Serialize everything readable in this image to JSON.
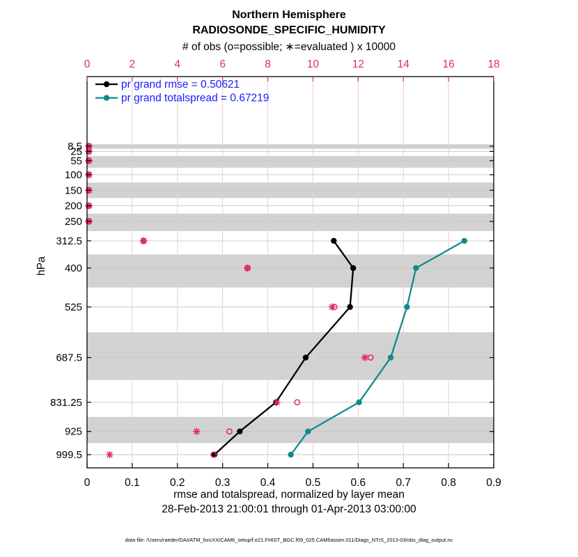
{
  "header": {
    "title": "Northern Hemisphere",
    "subtitle": "RADIOSONDE_SPECIFIC_HUMIDITY",
    "obs_axis_label": "# of obs (o=possible; ∗=evaluated ) x 10000"
  },
  "axes": {
    "ylabel": "hPa",
    "xlabel": "rmse and totalspread, normalized by layer mean",
    "xlabel_dates": "28-Feb-2013 21:00:01 through 01-Apr-2013 03:00:00",
    "top_ticks": [
      "0",
      "2",
      "4",
      "6",
      "8",
      "10",
      "12",
      "14",
      "16",
      "18"
    ],
    "bottom_ticks": [
      "0",
      "0.1",
      "0.2",
      "0.3",
      "0.4",
      "0.5",
      "0.6",
      "0.7",
      "0.8",
      "0.9"
    ],
    "left_ticks": [
      "8.5",
      "25",
      "55",
      "100",
      "150",
      "200",
      "250",
      "312.5",
      "400",
      "525",
      "687.5",
      "831.25",
      "925",
      "999.5"
    ]
  },
  "legend": {
    "entries": [
      {
        "label": "pr grand rmse = 0.50621",
        "color": "#000000"
      },
      {
        "label": "pr grand totalspread = 0.67219",
        "color": "#0f8b8b"
      }
    ]
  },
  "footer": {
    "data_file": "data file: /Users/raeder/DAI/ATM_forcXX/CAM6_setup/f.e21.FHIST_BGC.f09_025.CAM6assim.011/Diags_NTrS_2013-03/obs_diag_output.nc"
  },
  "colors": {
    "accent_pink": "#e02a60",
    "grid_pink": "#f1c9d6",
    "grid_gray": "#c6c6c6",
    "band_gray": "#d2d2d2",
    "teal": "#0f8b8b",
    "legend_text_blue": "#1a1aff",
    "frame_black": "#000000"
  },
  "chart_data": {
    "type": "line",
    "orientation": "vertical-profile",
    "title": "Northern Hemisphere",
    "subtitle": "RADIOSONDE_SPECIFIC_HUMIDITY",
    "ylabel": "hPa",
    "y_direction": "reversed (pressure increases downward)",
    "grid": "on",
    "legend_position": "top-left inside plot",
    "x_axis_bottom": {
      "label": "rmse and totalspread, normalized by layer mean",
      "range": [
        0,
        0.9
      ],
      "tick_step": 0.1
    },
    "x_axis_top": {
      "label": "# of obs (o=possible; ∗=evaluated ) x 10000",
      "range": [
        0,
        18
      ],
      "tick_step": 2,
      "units_scale": 10000
    },
    "time_range": "28-Feb-2013 21:00:01 through 01-Apr-2013 03:00:00",
    "levels_hpa": [
      8.5,
      25,
      55,
      100,
      150,
      200,
      250,
      312.5,
      400,
      525,
      687.5,
      831.25,
      925,
      999.5
    ],
    "series": [
      {
        "name": "pr grand rmse",
        "legend": "pr grand rmse = 0.50621",
        "grand_value": 0.50621,
        "color": "#000000",
        "levels_hpa": [
          312.5,
          400,
          525,
          687.5,
          831.25,
          925,
          999.5
        ],
        "values": [
          0.546,
          0.589,
          0.582,
          0.484,
          0.418,
          0.338,
          0.282
        ]
      },
      {
        "name": "pr grand totalspread",
        "legend": "pr grand totalspread = 0.67219",
        "grand_value": 0.67219,
        "color": "#0f8b8b",
        "levels_hpa": [
          312.5,
          400,
          525,
          687.5,
          831.25,
          925,
          999.5
        ],
        "values": [
          0.835,
          0.728,
          0.708,
          0.672,
          0.602,
          0.489,
          0.451
        ]
      }
    ],
    "obs_counts_x10000": {
      "color": "#e02a60",
      "marker_possible": "o",
      "marker_evaluated": "∗",
      "levels_hpa": [
        8.5,
        25,
        55,
        100,
        150,
        200,
        250,
        312.5,
        400,
        525,
        687.5,
        831.25,
        925,
        999.5
      ],
      "possible": [
        0.08,
        0.08,
        0.08,
        0.08,
        0.08,
        0.08,
        0.08,
        2.5,
        7.1,
        10.95,
        12.55,
        9.3,
        6.3,
        5.6
      ],
      "evaluated": [
        0.08,
        0.08,
        0.08,
        0.08,
        0.08,
        0.08,
        0.08,
        2.5,
        7.1,
        10.85,
        12.3,
        8.4,
        4.85,
        1.0
      ]
    },
    "shaded_layers_hpa": [
      [
        2,
        16.75
      ],
      [
        40,
        77.5
      ],
      [
        125,
        175
      ],
      [
        225,
        281.25
      ],
      [
        356.25,
        462.5
      ],
      [
        606.25,
        759.375
      ],
      [
        878.125,
        962.25
      ]
    ]
  }
}
